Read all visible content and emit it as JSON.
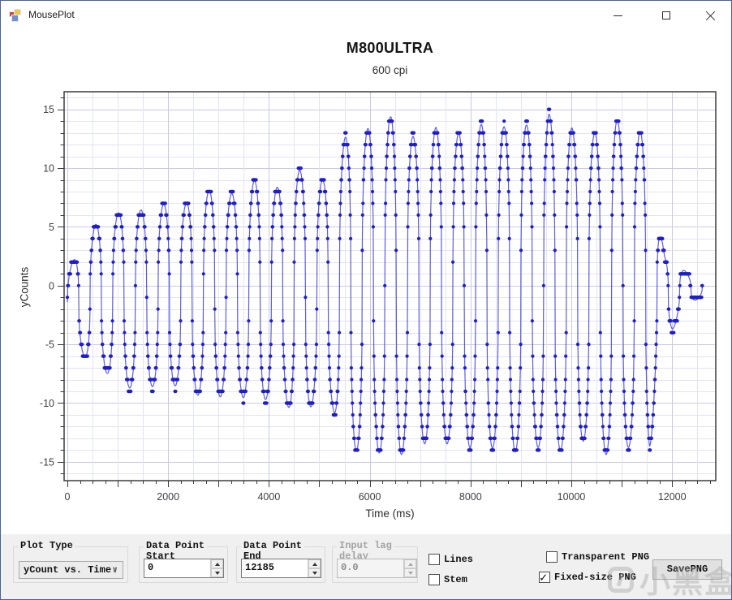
{
  "window": {
    "title": "MousePlot"
  },
  "icons": {
    "app_icon": "winforms-default-form-icon",
    "minimize": "minimize-line",
    "maximize": "maximize-square",
    "close": "close-x",
    "combo_chevron": "∨",
    "spinner_up": "up-triangle",
    "spinner_down": "down-triangle",
    "checkbox_check": "✓"
  },
  "chart": {
    "title": "M800ULTRA",
    "subtitle": "600 cpi",
    "xlabel": "Time (ms)",
    "ylabel": "yCounts"
  },
  "chart_data": {
    "type": "line",
    "title": "M800ULTRA",
    "subtitle": "600 cpi",
    "xlabel": "Time (ms)",
    "ylabel": "yCounts",
    "xlim": [
      -64,
      12866
    ],
    "ylim": [
      -16.6,
      16.5
    ],
    "x_tick_labels": [
      0,
      2000,
      4000,
      6000,
      8000,
      10000,
      12000
    ],
    "y_tick_labels": [
      -15,
      -10,
      -5,
      0,
      5,
      10,
      15
    ],
    "grid": {
      "x_minor_step": 500,
      "y_minor_step": 1,
      "x_major_step": 2000,
      "y_major_step": 5,
      "minor_color": "#e3e3f3",
      "major_color": "#c9c9e7"
    },
    "ticks": {
      "x_step": 250,
      "x_long_step": 1000,
      "y_step": 1,
      "y_long_step": 5
    },
    "colors": {
      "marker": "#1e1ecb",
      "line": "#3535d6",
      "frame": "#3c3c3c",
      "tick_label": "#3f3f46"
    },
    "series": [
      {
        "name": "yCounts",
        "marker": "dot",
        "description": "Mouse y-axis counts per report while shaking mouse vertically; quantized integer counts oscillating, amplitude growing from ~2 to ~14-15 then decaying to 0 near 12.6s",
        "waveform": {
          "kind": "quantized-shaped-sine",
          "t_start_ms": 0,
          "t_end_ms": 12600,
          "sample_interval_ms": 7,
          "period_ms": 450,
          "sharpen_exponent": 0.38,
          "amplitude_wobble": {
            "scale": 0.035,
            "freq": 0.00713
          },
          "amplitude_keyframes": [
            [
              0,
              2.6
            ],
            [
              250,
              4.2
            ],
            [
              550,
              6.3
            ],
            [
              900,
              6.8
            ],
            [
              1300,
              7.6
            ],
            [
              1700,
              7.8
            ],
            [
              2100,
              7.4
            ],
            [
              2500,
              8.6
            ],
            [
              2900,
              8.6
            ],
            [
              3300,
              8.8
            ],
            [
              3700,
              9.2
            ],
            [
              4100,
              9.0
            ],
            [
              4500,
              10.2
            ],
            [
              4900,
              9.6
            ],
            [
              5250,
              10.0
            ],
            [
              5450,
              12.0
            ],
            [
              5700,
              13.8
            ],
            [
              6000,
              14.1
            ],
            [
              6300,
              13.9
            ],
            [
              6600,
              14.4
            ],
            [
              6900,
              13.2
            ],
            [
              7200,
              13.1
            ],
            [
              7500,
              13.4
            ],
            [
              7800,
              13.6
            ],
            [
              8100,
              13.3
            ],
            [
              8400,
              13.8
            ],
            [
              8700,
              14.2
            ],
            [
              9000,
              13.4
            ],
            [
              9300,
              13.6
            ],
            [
              9550,
              15.3
            ],
            [
              9800,
              13.4
            ],
            [
              10100,
              13.2
            ],
            [
              10400,
              13.5
            ],
            [
              10700,
              13.8
            ],
            [
              11000,
              14.1
            ],
            [
              11300,
              13.6
            ],
            [
              11550,
              13.8
            ],
            [
              11700,
              7.0
            ],
            [
              11850,
              3.4
            ],
            [
              12000,
              3.4
            ],
            [
              12150,
              2.2
            ],
            [
              12300,
              1.4
            ],
            [
              12450,
              1.0
            ],
            [
              12600,
              0.8
            ]
          ],
          "offset_keyframes": [
            [
              0,
              -1.4
            ],
            [
              600,
              -0.9
            ],
            [
              1200,
              -1.1
            ],
            [
              1800,
              -0.9
            ],
            [
              2400,
              -0.9
            ],
            [
              3000,
              -0.7
            ],
            [
              3600,
              -0.6
            ],
            [
              4200,
              -0.5
            ],
            [
              4800,
              -0.6
            ],
            [
              5400,
              -0.3
            ],
            [
              6000,
              -0.2
            ],
            [
              8000,
              -0.2
            ],
            [
              10000,
              -0.2
            ],
            [
              11550,
              -0.3
            ],
            [
              11750,
              -1.0
            ],
            [
              11950,
              -0.6
            ],
            [
              12150,
              -0.4
            ],
            [
              12400,
              -0.3
            ],
            [
              12600,
              -0.1
            ]
          ]
        }
      }
    ],
    "legend": null
  },
  "panel": {
    "plot_type": {
      "label": "Plot Type",
      "value": "yCount vs. Time"
    },
    "data_point_start": {
      "label_line1": "Data Point",
      "label_line2": "Start",
      "value": "0"
    },
    "data_point_end": {
      "label_line1": "Data Point",
      "label_line2": "End",
      "value": "12185"
    },
    "input_lag": {
      "label_line1": "Input lag",
      "label_line2": "delay",
      "value": "0.0",
      "disabled": true
    },
    "checkboxes": [
      {
        "label": "Lines",
        "checked": false
      },
      {
        "label": "Stem",
        "checked": false
      },
      {
        "label": "Transparent PNG",
        "checked": false
      },
      {
        "label": "Fixed-size PNG",
        "checked": true
      }
    ],
    "save_button": "SavePNG"
  },
  "watermark": {
    "text": "小黑盒"
  }
}
